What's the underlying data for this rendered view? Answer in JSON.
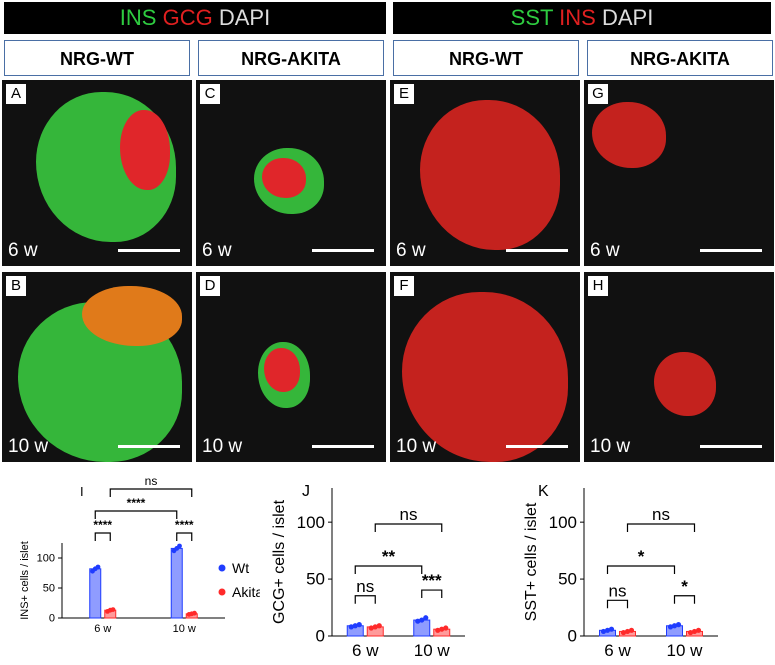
{
  "bands": [
    {
      "c1": "INS",
      "c2": "GCG",
      "c3": "DAPI",
      "col1": "#2ecc40",
      "col2": "#e02020",
      "col3": "#dddddd"
    },
    {
      "c1": "SST",
      "c2": "INS",
      "c3": "DAPI",
      "col1": "#2ecc40",
      "col2": "#e02020",
      "col3": "#dddddd"
    }
  ],
  "headers": [
    "NRG-WT",
    "NRG-AKITA",
    "NRG-WT",
    "NRG-AKITA"
  ],
  "panels": [
    {
      "letter": "A",
      "time": "6 w"
    },
    {
      "letter": "C",
      "time": "6 w"
    },
    {
      "letter": "E",
      "time": "6 w"
    },
    {
      "letter": "G",
      "time": "6 w"
    },
    {
      "letter": "B",
      "time": "10 w"
    },
    {
      "letter": "D",
      "time": "10 w"
    },
    {
      "letter": "F",
      "time": "10 w"
    },
    {
      "letter": "H",
      "time": "10 w"
    }
  ],
  "chart_data": [
    {
      "panel_letter": "I",
      "type": "bar",
      "categories": [
        "6 w",
        "10 w"
      ],
      "ylabel": "INS+ cells / islet",
      "ylim": [
        0,
        125
      ],
      "yticks": [
        0,
        50,
        100
      ],
      "series": [
        {
          "name": "Wt",
          "values": [
            82,
            116
          ],
          "points": [
            [
              78,
              82,
              85
            ],
            [
              112,
              116,
              120
            ]
          ],
          "color": "#1f3cff"
        },
        {
          "name": "Akita",
          "values": [
            13,
            7
          ],
          "points": [
            [
              11,
              13,
              14
            ],
            [
              6,
              7,
              8
            ]
          ],
          "color": "#ff2a2a"
        }
      ],
      "significance": [
        {
          "label": "****",
          "between": "Wt 6 w vs Akita 6 w"
        },
        {
          "label": "****",
          "between": "Wt 10 w vs Akita 10 w"
        },
        {
          "label": "****",
          "between": "Wt 6 w vs Wt 10 w"
        },
        {
          "label": "ns",
          "between": "Akita 6 w vs Akita 10 w"
        }
      ],
      "legend": "right"
    },
    {
      "panel_letter": "J",
      "type": "bar",
      "categories": [
        "6 w",
        "10 w"
      ],
      "ylabel": "GCG+ cells / islet",
      "ylim": [
        0,
        130
      ],
      "yticks": [
        0,
        50,
        100
      ],
      "series": [
        {
          "name": "Wt",
          "values": [
            9,
            14
          ],
          "points": [
            [
              8,
              9,
              10
            ],
            [
              13,
              14,
              16
            ]
          ],
          "color": "#1f3cff"
        },
        {
          "name": "Akita",
          "values": [
            8,
            6
          ],
          "points": [
            [
              7,
              8,
              9
            ],
            [
              5,
              6,
              7
            ]
          ],
          "color": "#ff2a2a"
        }
      ],
      "significance": [
        {
          "label": "ns",
          "between": "Wt 6 w vs Akita 6 w"
        },
        {
          "label": "***",
          "between": "Wt 10 w vs Akita 10 w"
        },
        {
          "label": "**",
          "between": "Wt 6 w vs Wt 10 w"
        },
        {
          "label": "ns",
          "between": "Akita 6 w vs Akita 10 w"
        }
      ]
    },
    {
      "panel_letter": "K",
      "type": "bar",
      "categories": [
        "6 w",
        "10 w"
      ],
      "ylabel": "SST+ cells / islet",
      "ylim": [
        0,
        130
      ],
      "yticks": [
        0,
        50,
        100
      ],
      "series": [
        {
          "name": "Wt",
          "values": [
            5,
            9
          ],
          "points": [
            [
              4,
              5,
              6
            ],
            [
              8,
              9,
              10
            ]
          ],
          "color": "#1f3cff"
        },
        {
          "name": "Akita",
          "values": [
            4,
            4
          ],
          "points": [
            [
              3,
              4,
              5
            ],
            [
              3,
              4,
              5
            ]
          ],
          "color": "#ff2a2a"
        }
      ],
      "significance": [
        {
          "label": "ns",
          "between": "Wt 6 w vs Akita 6 w"
        },
        {
          "label": "*",
          "between": "Wt 10 w vs Akita 10 w"
        },
        {
          "label": "*",
          "between": "Wt 6 w vs Wt 10 w"
        },
        {
          "label": "ns",
          "between": "Akita 6 w vs Akita 10 w"
        }
      ]
    }
  ]
}
